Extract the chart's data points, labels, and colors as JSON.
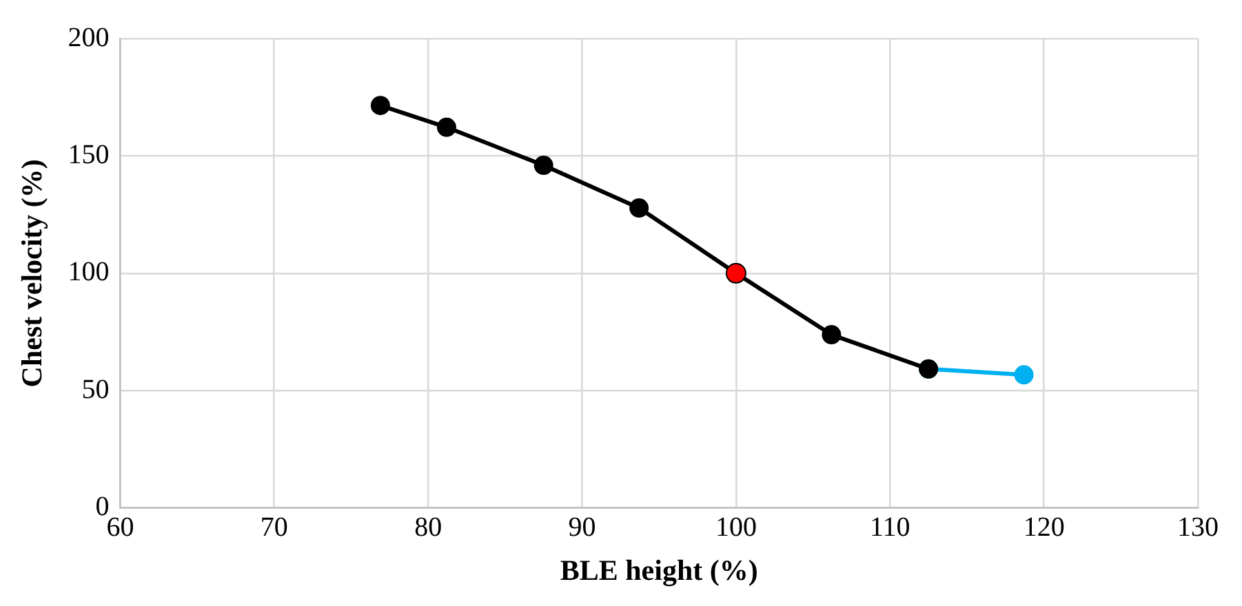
{
  "chart_data": {
    "type": "line",
    "xlabel": "BLE height (%)",
    "ylabel": "Chest velocity (%)",
    "xlim": [
      60,
      130
    ],
    "xticks": [
      60,
      70,
      80,
      90,
      100,
      110,
      120,
      130
    ],
    "ylim": [
      0,
      200
    ],
    "yticks": [
      0,
      50,
      100,
      150,
      200
    ],
    "grid": true,
    "legend": false,
    "marker": "circle",
    "line_style": "solid",
    "series": [
      {
        "color": "#00b0f0",
        "x": [
          112.5,
          118.7
        ],
        "values": [
          59.2,
          56.7
        ]
      },
      {
        "color": "#000000",
        "x": [
          76.9,
          81.2,
          87.5,
          93.7,
          100,
          106.2,
          112.5
        ],
        "values": [
          171.5,
          162.2,
          146.0,
          127.8,
          100,
          73.8,
          59.2
        ],
        "colors": [
          "#000000",
          "#000000",
          "#000000",
          "#000000",
          "#ff0000",
          "#000000",
          "#000000"
        ]
      }
    ]
  }
}
